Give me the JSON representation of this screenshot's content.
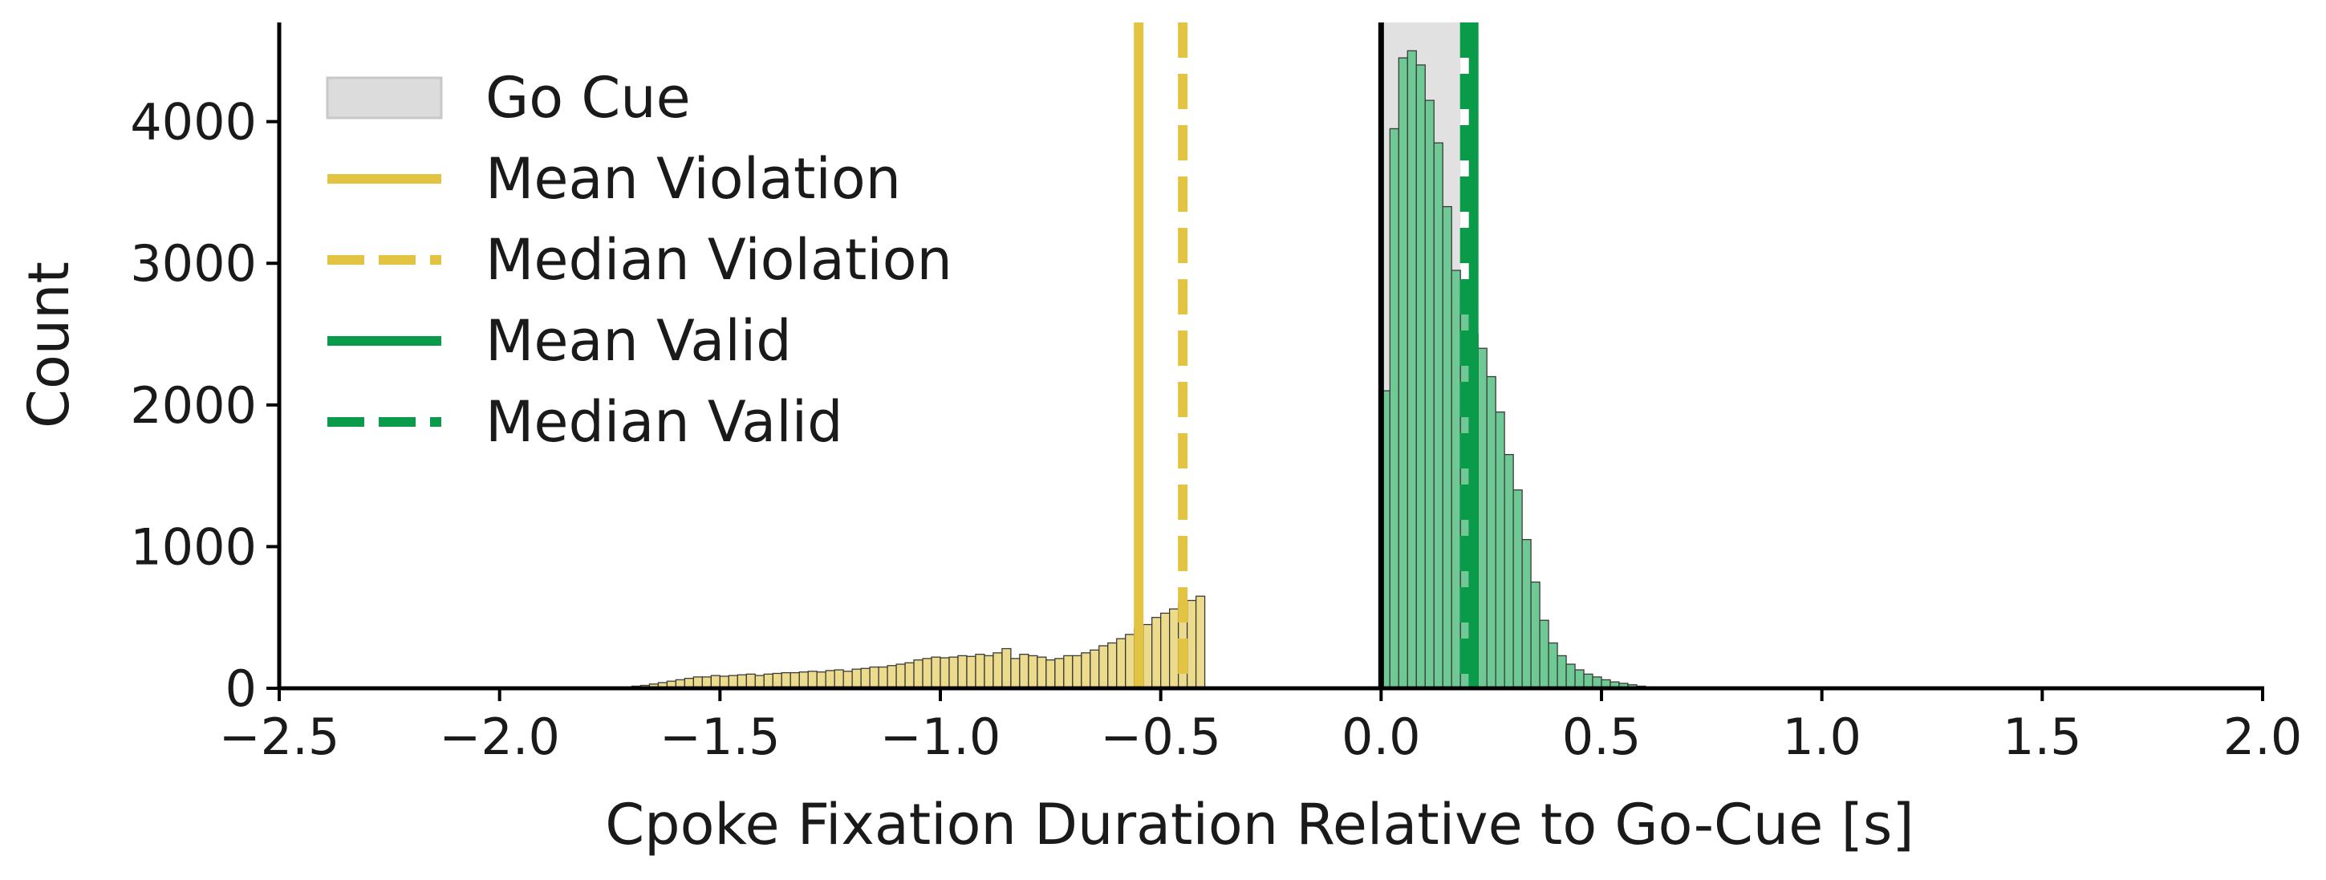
{
  "chart_data": {
    "type": "bar",
    "xlabel": "Cpoke Fixation Duration Relative to Go-Cue [s]",
    "ylabel": "Count",
    "xlim": [
      -2.5,
      2.0
    ],
    "ylim": [
      0,
      4700
    ],
    "x_ticks": [
      -2.5,
      -2.0,
      -1.5,
      -1.0,
      -0.5,
      0.0,
      0.5,
      1.0,
      1.5,
      2.0
    ],
    "x_tick_labels": [
      "−2.5",
      "−2.0",
      "−1.5",
      "−1.0",
      "−0.5",
      "0.0",
      "0.5",
      "1.0",
      "1.5",
      "2.0"
    ],
    "y_ticks": [
      0,
      1000,
      2000,
      3000,
      4000
    ],
    "y_tick_labels": [
      "0",
      "1000",
      "2000",
      "3000",
      "4000"
    ],
    "grid": false,
    "legend_position": "top-left",
    "bin_width": 0.02,
    "shaded_region": {
      "name": "Go Cue",
      "x_start": 0.0,
      "x_end": 0.18,
      "color": "#dcdcdc"
    },
    "zero_line": {
      "x": 0.0,
      "color": "#000000"
    },
    "reference_lines": [
      {
        "name": "Mean Violation",
        "x": -0.55,
        "style": "solid",
        "color": "#e3c442"
      },
      {
        "name": "Median Violation",
        "x": -0.45,
        "style": "dashed",
        "color": "#e3c442"
      },
      {
        "name": "Mean Valid",
        "x": 0.21,
        "style": "solid",
        "color": "#0a9b4a"
      },
      {
        "name": "Median Valid",
        "x": 0.19,
        "style": "dashed",
        "color": "#0a9b4a"
      }
    ],
    "series": [
      {
        "name": "Violation",
        "color": "#ecdb8c",
        "bin_start": -1.76,
        "counts": [
          5,
          8,
          10,
          15,
          20,
          30,
          40,
          50,
          60,
          70,
          80,
          80,
          90,
          85,
          90,
          95,
          100,
          90,
          100,
          105,
          110,
          110,
          115,
          120,
          115,
          125,
          130,
          120,
          135,
          140,
          150,
          150,
          160,
          170,
          180,
          200,
          210,
          220,
          215,
          220,
          230,
          225,
          240,
          230,
          250,
          280,
          210,
          240,
          230,
          220,
          200,
          210,
          230,
          230,
          250,
          270,
          300,
          320,
          350,
          380,
          420,
          450,
          500,
          530,
          560,
          600,
          620,
          650
        ]
      },
      {
        "name": "Valid",
        "color": "#6fc995",
        "bin_start": 0.0,
        "counts": [
          2100,
          3950,
          4450,
          4500,
          4400,
          4150,
          3850,
          3400,
          2950,
          2750,
          2500,
          2400,
          2200,
          1950,
          1650,
          1400,
          1050,
          750,
          480,
          320,
          230,
          170,
          130,
          100,
          80,
          60,
          45,
          35,
          25,
          15,
          10,
          8,
          5,
          3,
          2,
          1
        ]
      }
    ]
  }
}
